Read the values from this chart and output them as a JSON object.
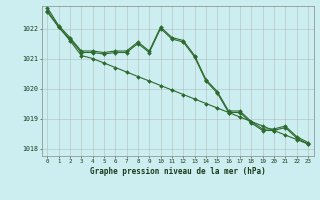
{
  "line1_x": [
    0,
    1,
    2,
    3,
    4,
    5,
    6,
    7,
    8,
    9,
    10,
    11,
    12,
    13,
    14,
    15,
    16,
    17,
    18,
    19,
    20,
    21,
    22,
    23
  ],
  "line1_y": [
    1022.55,
    1022.05,
    1021.65,
    1021.2,
    1021.2,
    1021.15,
    1021.2,
    1021.2,
    1021.5,
    1021.2,
    1022.0,
    1021.65,
    1021.55,
    1021.05,
    1020.25,
    1019.85,
    1019.2,
    1019.2,
    1018.85,
    1018.6,
    1018.6,
    1018.7,
    1018.35,
    1018.15
  ],
  "line2_x": [
    0,
    1,
    2,
    3,
    4,
    5,
    6,
    7,
    8,
    9,
    10,
    11,
    12,
    13,
    14,
    15,
    16,
    17,
    18,
    19,
    20,
    21,
    22,
    23
  ],
  "line2_y": [
    1022.7,
    1022.1,
    1021.7,
    1021.25,
    1021.25,
    1021.2,
    1021.25,
    1021.25,
    1021.55,
    1021.25,
    1022.05,
    1021.7,
    1021.6,
    1021.1,
    1020.3,
    1019.9,
    1019.25,
    1019.25,
    1018.9,
    1018.65,
    1018.65,
    1018.75,
    1018.4,
    1018.2
  ],
  "line3_x": [
    0,
    1,
    2,
    3,
    4,
    5,
    6,
    7,
    8,
    9,
    10,
    11,
    12,
    13,
    14,
    15,
    16,
    17,
    18,
    19,
    20,
    21,
    22,
    23
  ],
  "line3_y": [
    1022.6,
    1022.05,
    1021.6,
    1021.1,
    1021.0,
    1020.85,
    1020.7,
    1020.55,
    1020.4,
    1020.25,
    1020.1,
    1019.95,
    1019.8,
    1019.65,
    1019.5,
    1019.35,
    1019.2,
    1019.05,
    1018.9,
    1018.75,
    1018.6,
    1018.45,
    1018.3,
    1018.15
  ],
  "bg_color": "#cceef0",
  "grid_color": "#b0b0b0",
  "line_color": "#2d6a2d",
  "xlabel": "Graphe pression niveau de la mer (hPa)",
  "ylim": [
    1017.75,
    1022.75
  ],
  "yticks": [
    1018,
    1019,
    1020,
    1021,
    1022
  ],
  "xticks": [
    0,
    1,
    2,
    3,
    4,
    5,
    6,
    7,
    8,
    9,
    10,
    11,
    12,
    13,
    14,
    15,
    16,
    17,
    18,
    19,
    20,
    21,
    22,
    23
  ]
}
